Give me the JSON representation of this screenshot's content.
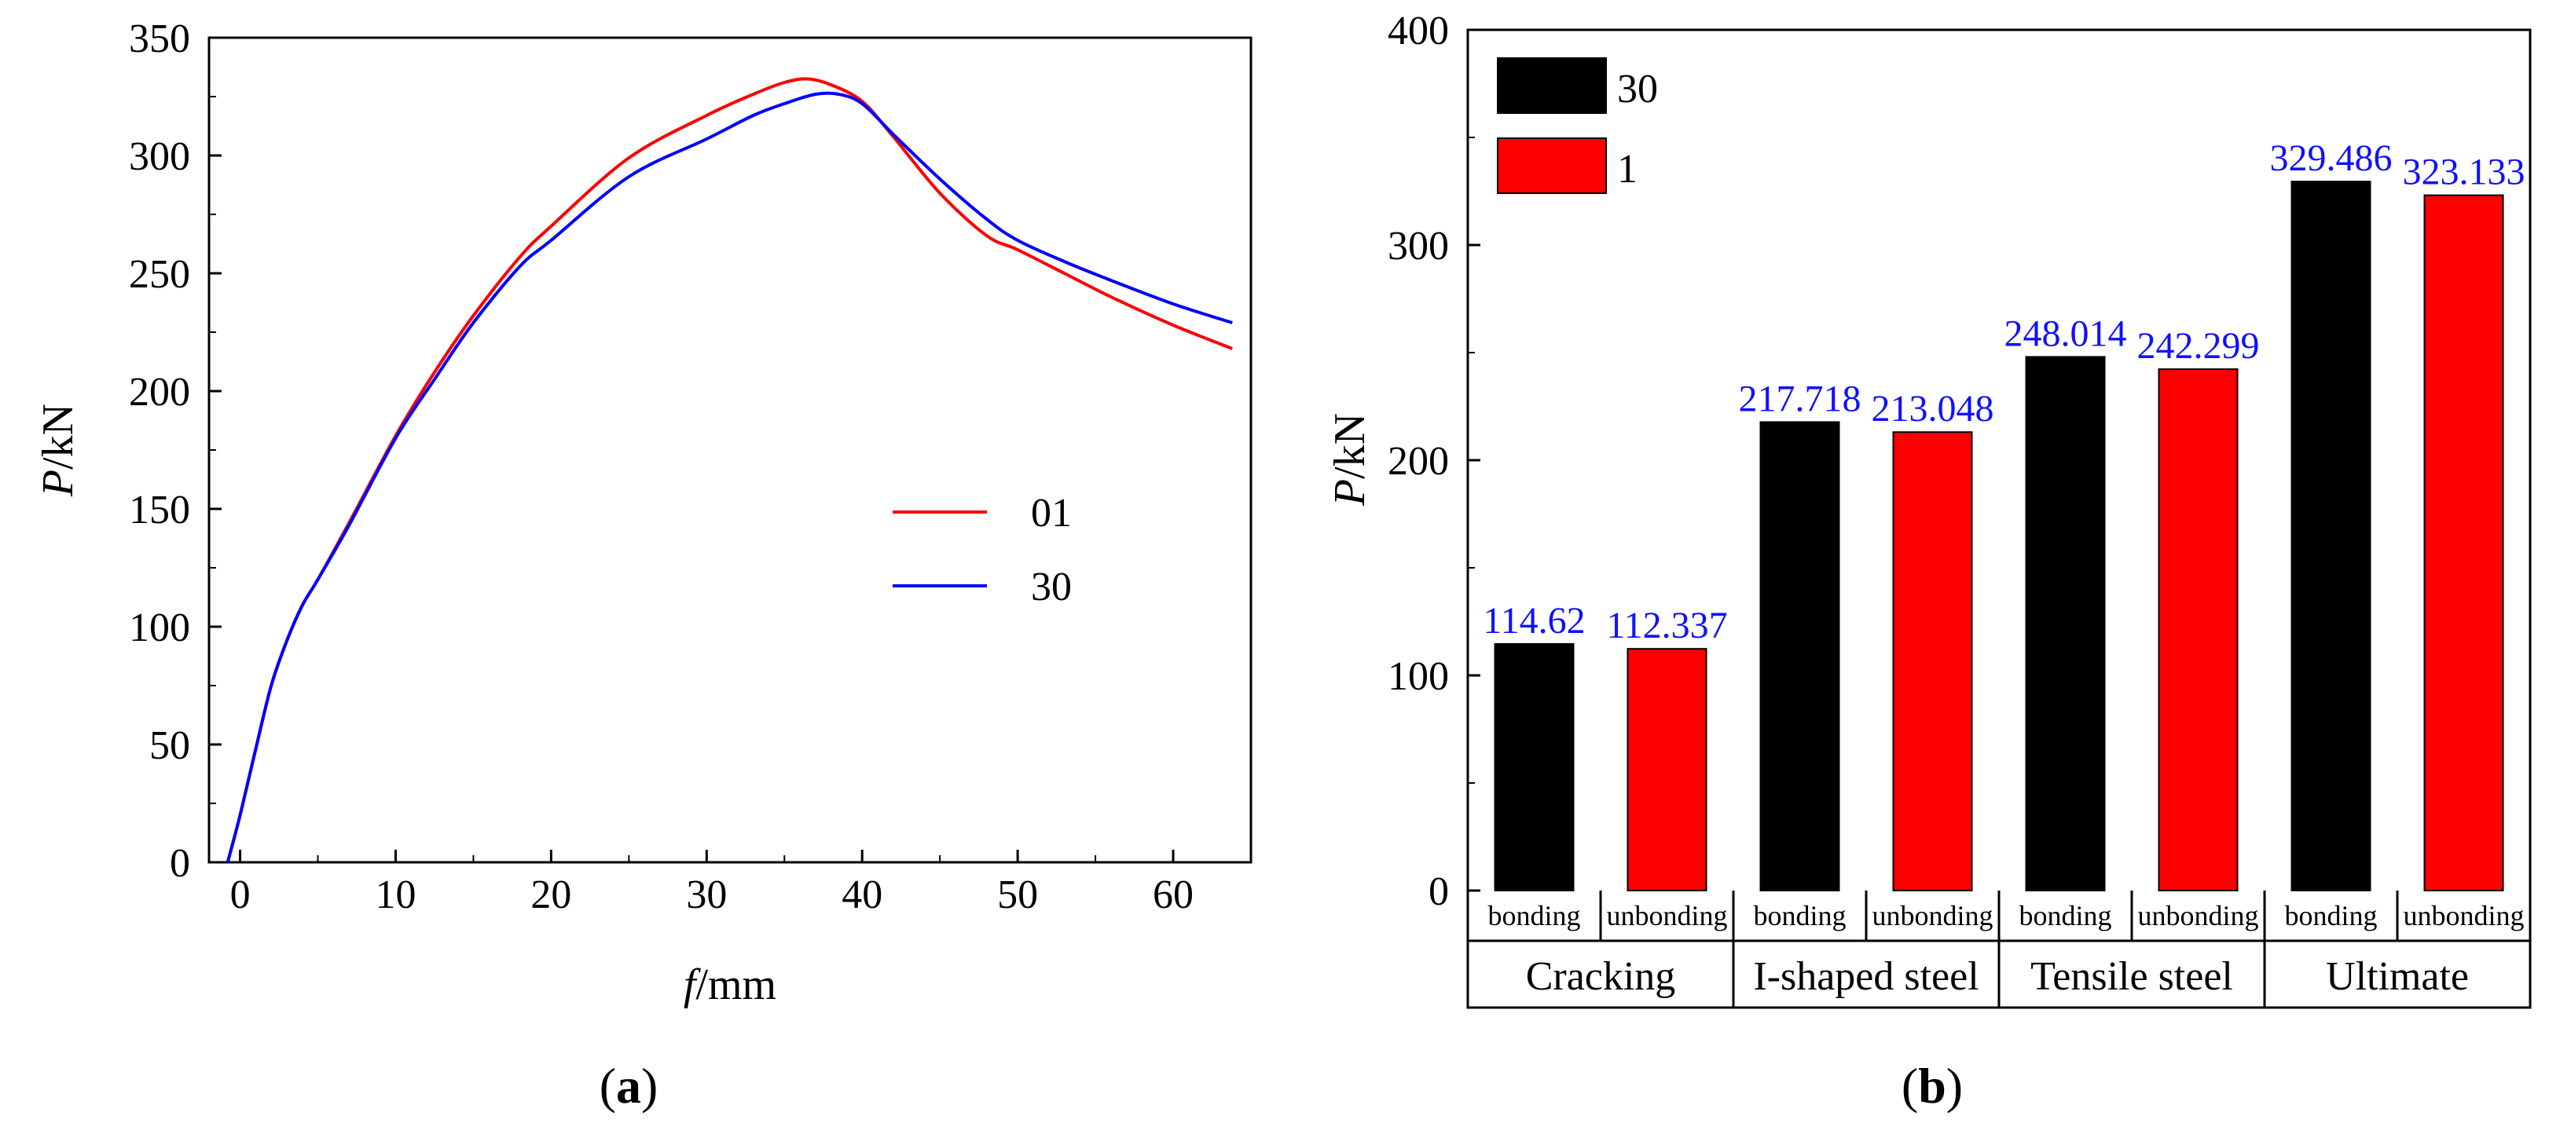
{
  "panel_a": {
    "label": "a",
    "xlabel_italic": "f",
    "xlabel_unit": "/mm",
    "ylabel_italic": "P",
    "ylabel_unit": "/kN"
  },
  "panel_b": {
    "label": "b",
    "ylabel_italic": "P",
    "ylabel_unit": "/kN"
  },
  "chart_data": [
    {
      "type": "line",
      "title": "",
      "xlabel": "f/mm",
      "ylabel": "P/kN",
      "xlim": [
        -2,
        65
      ],
      "ylim": [
        0,
        350
      ],
      "xticks": [
        0,
        10,
        20,
        30,
        40,
        50,
        60
      ],
      "yticks": [
        0,
        50,
        100,
        150,
        200,
        250,
        300,
        350
      ],
      "legend_position": "center-right",
      "series": [
        {
          "name": "01",
          "color": "#ff0000",
          "x": [
            -0.8,
            0,
            1,
            2,
            3,
            4,
            5,
            7,
            10,
            12.5,
            15,
            18,
            20,
            25,
            30,
            33,
            35,
            36.5,
            38,
            40,
            42,
            45,
            48,
            50,
            53,
            56,
            60,
            63.8
          ],
          "y": [
            0,
            20,
            48,
            75,
            94,
            109,
            120,
            144,
            181,
            208,
            232,
            257,
            270,
            299,
            317,
            326,
            331,
            332.5,
            330,
            323,
            308,
            284,
            266,
            260,
            250,
            240,
            228,
            218
          ]
        },
        {
          "name": "30",
          "color": "#0000ff",
          "x": [
            -0.8,
            0,
            1,
            2,
            3,
            4,
            5,
            7,
            10,
            12.5,
            15,
            18,
            20,
            25,
            30,
            33,
            35,
            37,
            38.5,
            40,
            42,
            45,
            48,
            50,
            53,
            56,
            60,
            63.8
          ],
          "y": [
            0,
            20,
            48,
            75,
            94,
            109,
            120,
            143,
            180,
            205,
            229,
            253,
            264,
            291,
            307,
            317,
            322,
            326,
            326,
            322,
            309,
            290,
            273,
            264,
            255,
            247,
            237,
            229
          ]
        }
      ]
    },
    {
      "type": "bar",
      "title": "",
      "xlabel": "",
      "ylabel": "P/kN",
      "ylim": [
        0,
        400
      ],
      "yticks": [
        0,
        100,
        200,
        300,
        400
      ],
      "legend_position": "top-left",
      "groups": [
        "Cracking",
        "I-shaped steel",
        "Tensile steel",
        "Ultimate"
      ],
      "subcategories": [
        "bonding",
        "unbonding",
        "bonding",
        "unbonding",
        "bonding",
        "unbonding",
        "bonding",
        "unbonding"
      ],
      "values": [
        114.62,
        112.337,
        217.718,
        213.048,
        248.014,
        242.299,
        329.486,
        323.133
      ],
      "value_labels": [
        "114.62",
        "112.337",
        "217.718",
        "213.048",
        "248.014",
        "242.299",
        "329.486",
        "323.133"
      ],
      "bar_colors": [
        "#000000",
        "#ff0000",
        "#000000",
        "#ff0000",
        "#000000",
        "#ff0000",
        "#000000",
        "#ff0000"
      ],
      "series": [
        {
          "name": "30",
          "color": "#000000"
        },
        {
          "name": "1",
          "color": "#ff0000"
        }
      ]
    }
  ]
}
